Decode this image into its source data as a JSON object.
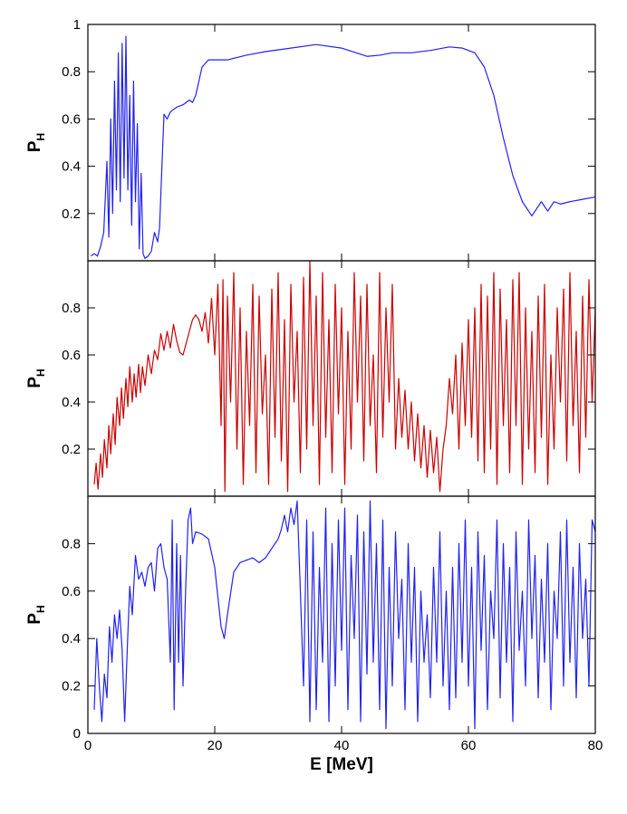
{
  "chart_data": [
    {
      "type": "line",
      "ylabel": "P",
      "ylabel_subscript": "H",
      "color": "#2222ee",
      "x": [
        0.5,
        1,
        1.5,
        2,
        2.5,
        3,
        3.3,
        3.6,
        3.9,
        4.2,
        4.5,
        4.8,
        5.1,
        5.4,
        5.7,
        6,
        6.3,
        6.6,
        6.9,
        7.2,
        7.5,
        7.8,
        8.1,
        8.4,
        8.7,
        9,
        9.5,
        10,
        10.5,
        11,
        11.3,
        11.6,
        12,
        12.5,
        13,
        14,
        15,
        16,
        16.5,
        17,
        17.5,
        18,
        19,
        20,
        22,
        25,
        28,
        32,
        36,
        40,
        44,
        46,
        48,
        51,
        54,
        57,
        59,
        61,
        62.5,
        64,
        65.5,
        67,
        68.5,
        70,
        71,
        71.5,
        72.5,
        73.5,
        74.5,
        76,
        78,
        80
      ],
      "values": [
        0.02,
        0.03,
        0.02,
        0.06,
        0.12,
        0.42,
        0.1,
        0.6,
        0.2,
        0.76,
        0.3,
        0.88,
        0.25,
        0.92,
        0.35,
        0.95,
        0.3,
        0.7,
        0.15,
        0.76,
        0.25,
        0.58,
        0.05,
        0.37,
        0.03,
        0.01,
        0.02,
        0.04,
        0.12,
        0.08,
        0.14,
        0.35,
        0.62,
        0.6,
        0.63,
        0.65,
        0.66,
        0.68,
        0.67,
        0.7,
        0.76,
        0.82,
        0.85,
        0.85,
        0.85,
        0.87,
        0.885,
        0.9,
        0.915,
        0.9,
        0.865,
        0.87,
        0.88,
        0.88,
        0.89,
        0.905,
        0.9,
        0.88,
        0.82,
        0.7,
        0.52,
        0.36,
        0.25,
        0.19,
        0.23,
        0.25,
        0.21,
        0.25,
        0.24,
        0.25,
        0.26,
        0.27
      ],
      "xlim": [
        0,
        80
      ],
      "xticks": [
        0,
        20,
        40,
        60,
        80
      ],
      "ylim": [
        0,
        1
      ],
      "yticks": [
        0.2,
        0.4,
        0.6,
        0.8,
        1
      ]
    },
    {
      "type": "line",
      "ylabel": "P",
      "ylabel_subscript": "H",
      "color": "#cc0000",
      "x": [
        1,
        1.3,
        1.6,
        2,
        2.3,
        2.6,
        3,
        3.3,
        3.6,
        4,
        4.3,
        4.6,
        5,
        5.3,
        5.6,
        6,
        6.3,
        6.6,
        7,
        7.3,
        7.6,
        8,
        8.3,
        8.6,
        9,
        9.5,
        10,
        10.5,
        11,
        11.5,
        12,
        12.5,
        13,
        13.5,
        14,
        14.5,
        15,
        15.5,
        16,
        16.5,
        17,
        17.5,
        18,
        18.5,
        19,
        19.5,
        20,
        20.5,
        21,
        21.3,
        21.6,
        22,
        22.5,
        23,
        23.5,
        24,
        24.5,
        25,
        25.5,
        26,
        26.5,
        27,
        27.5,
        28,
        28.5,
        29,
        29.5,
        30,
        30.5,
        31,
        31.5,
        32,
        32.5,
        33,
        33.5,
        34,
        34.5,
        35,
        35.5,
        36,
        36.5,
        37,
        37.5,
        38,
        38.5,
        39,
        39.5,
        40,
        40.5,
        41,
        41.5,
        42,
        42.5,
        43,
        43.5,
        44,
        44.5,
        45,
        45.5,
        46,
        46.5,
        47,
        47.5,
        48,
        48.5,
        49,
        49.5,
        50,
        50.5,
        51,
        51.5,
        52,
        52.5,
        53,
        53.5,
        54,
        54.5,
        55,
        55.5,
        56,
        56.5,
        57,
        57.5,
        58,
        58.5,
        59,
        59.5,
        60,
        60.5,
        61,
        61.5,
        62,
        62.5,
        63,
        63.5,
        64,
        64.5,
        65,
        65.5,
        66,
        66.5,
        67,
        67.5,
        68,
        68.5,
        69,
        69.5,
        70,
        70.5,
        71,
        71.5,
        72,
        72.5,
        73,
        73.5,
        74,
        74.5,
        75,
        75.5,
        76,
        76.5,
        77,
        77.5,
        78,
        78.5,
        79,
        79.5,
        80
      ],
      "values": [
        0.05,
        0.14,
        0.03,
        0.18,
        0.08,
        0.24,
        0.12,
        0.3,
        0.18,
        0.35,
        0.22,
        0.42,
        0.3,
        0.46,
        0.33,
        0.5,
        0.38,
        0.55,
        0.4,
        0.52,
        0.42,
        0.56,
        0.44,
        0.55,
        0.47,
        0.6,
        0.52,
        0.62,
        0.58,
        0.69,
        0.62,
        0.7,
        0.63,
        0.73,
        0.66,
        0.61,
        0.6,
        0.65,
        0.7,
        0.75,
        0.77,
        0.75,
        0.7,
        0.78,
        0.65,
        0.84,
        0.6,
        0.9,
        0.3,
        0.92,
        0.02,
        0.85,
        0.4,
        0.95,
        0.2,
        0.8,
        0.05,
        0.7,
        0.3,
        0.9,
        0.1,
        0.85,
        0.35,
        0.6,
        0.05,
        0.88,
        0.25,
        0.95,
        0.15,
        0.75,
        0.02,
        0.9,
        0.4,
        0.7,
        0.1,
        0.93,
        0.2,
        1.0,
        0.3,
        0.85,
        0.05,
        0.95,
        0.25,
        0.75,
        0.1,
        0.9,
        0.35,
        0.8,
        0.05,
        0.7,
        0.2,
        0.95,
        0.4,
        0.85,
        0.15,
        0.9,
        0.3,
        0.6,
        0.1,
        0.95,
        0.25,
        0.8,
        0.4,
        0.9,
        0.2,
        0.5,
        0.25,
        0.45,
        0.2,
        0.4,
        0.15,
        0.35,
        0.12,
        0.3,
        0.08,
        0.28,
        0.1,
        0.25,
        0.02,
        0.2,
        0.3,
        0.5,
        0.35,
        0.6,
        0.2,
        0.65,
        0.3,
        0.75,
        0.25,
        0.8,
        0.15,
        0.9,
        0.1,
        0.85,
        0.2,
        0.95,
        0.05,
        0.88,
        0.3,
        0.75,
        0.1,
        0.92,
        0.3,
        0.95,
        0.05,
        0.8,
        0.2,
        0.7,
        0.1,
        0.85,
        0.25,
        0.9,
        0.05,
        0.6,
        0.2,
        0.8,
        0.4,
        0.88,
        0.15,
        0.95,
        0.3,
        0.7,
        0.1,
        0.85,
        0.25,
        0.92,
        0.4,
        0.8
      ],
      "xlim": [
        0,
        80
      ],
      "xticks": [
        0,
        20,
        40,
        60,
        80
      ],
      "ylim": [
        0,
        1
      ],
      "yticks": [
        0.2,
        0.4,
        0.6,
        0.8
      ]
    },
    {
      "type": "line",
      "ylabel": "P",
      "ylabel_subscript": "H",
      "xlabel": "E [MeV]",
      "color": "#2222ee",
      "x": [
        1,
        1.4,
        1.8,
        2.2,
        2.6,
        3,
        3.4,
        3.8,
        4.2,
        4.6,
        5,
        5.4,
        5.8,
        6.2,
        6.6,
        7,
        7.5,
        8,
        8.5,
        9,
        9.5,
        10,
        10.5,
        11,
        11.5,
        12,
        12.5,
        13,
        13.3,
        13.6,
        14,
        14.3,
        14.6,
        15,
        15.4,
        15.8,
        16.2,
        16.5,
        17,
        18,
        19,
        20,
        21,
        21.5,
        22,
        23,
        24,
        25,
        26,
        27,
        28,
        29,
        30,
        30.5,
        31,
        31.5,
        32,
        32.5,
        33,
        33.5,
        34,
        34.5,
        35,
        35.5,
        36,
        36.5,
        37,
        37.5,
        38,
        38.5,
        39,
        39.5,
        40,
        40.5,
        41,
        41.5,
        42,
        42.5,
        43,
        43.5,
        44,
        44.5,
        45,
        45.5,
        46,
        46.5,
        47,
        47.5,
        48,
        48.5,
        49,
        49.5,
        50,
        50.5,
        51,
        51.5,
        52,
        52.5,
        53,
        53.5,
        54,
        54.5,
        55,
        55.5,
        56,
        56.5,
        57,
        57.5,
        58,
        58.5,
        59,
        59.5,
        60,
        60.5,
        61,
        61.5,
        62,
        62.5,
        63,
        63.5,
        64,
        64.5,
        65,
        65.5,
        66,
        66.5,
        67,
        67.5,
        68,
        68.5,
        69,
        69.5,
        70,
        70.5,
        71,
        71.5,
        72,
        72.5,
        73,
        73.5,
        74,
        74.5,
        75,
        75.5,
        76,
        76.5,
        77,
        77.5,
        78,
        78.5,
        79,
        79.5,
        80
      ],
      "values": [
        0.1,
        0.4,
        0.2,
        0.05,
        0.25,
        0.15,
        0.45,
        0.3,
        0.5,
        0.4,
        0.52,
        0.35,
        0.05,
        0.35,
        0.62,
        0.5,
        0.75,
        0.65,
        0.68,
        0.62,
        0.7,
        0.72,
        0.6,
        0.78,
        0.8,
        0.7,
        0.65,
        0.3,
        0.9,
        0.1,
        0.8,
        0.3,
        0.75,
        0.2,
        0.6,
        0.9,
        0.95,
        0.8,
        0.85,
        0.84,
        0.82,
        0.7,
        0.45,
        0.4,
        0.5,
        0.68,
        0.72,
        0.73,
        0.74,
        0.72,
        0.74,
        0.78,
        0.82,
        0.86,
        0.92,
        0.85,
        0.95,
        0.88,
        0.98,
        0.6,
        0.2,
        0.9,
        0.05,
        0.85,
        0.1,
        0.7,
        0.3,
        0.95,
        0.05,
        0.8,
        0.2,
        0.9,
        0.35,
        0.95,
        0.1,
        0.75,
        0.4,
        0.92,
        0.05,
        0.85,
        0.25,
        0.98,
        0.3,
        0.8,
        0.1,
        0.9,
        0.02,
        0.7,
        0.2,
        0.85,
        0.4,
        0.65,
        0.1,
        0.8,
        0.3,
        0.7,
        0.05,
        0.6,
        0.3,
        0.5,
        0.15,
        0.7,
        0.3,
        0.85,
        0.2,
        0.6,
        0.1,
        0.7,
        0.15,
        0.8,
        0.3,
        0.9,
        0.2,
        0.7,
        0.02,
        0.85,
        0.35,
        0.75,
        0.1,
        0.6,
        0.4,
        0.9,
        0.15,
        0.8,
        0.3,
        0.7,
        0.05,
        0.85,
        0.35,
        0.6,
        0.2,
        0.9,
        0.4,
        0.75,
        0.15,
        0.65,
        0.3,
        0.8,
        0.1,
        0.6,
        0.4,
        0.85,
        0.2,
        0.9,
        0.3,
        0.7,
        0.15,
        0.8,
        0.4,
        0.65,
        0.2,
        0.9,
        0.85
      ],
      "xlim": [
        0,
        80
      ],
      "xticks": [
        0,
        20,
        40,
        60,
        80
      ],
      "ylim": [
        0,
        1
      ],
      "yticks": [
        0,
        0.2,
        0.4,
        0.6,
        0.8
      ]
    }
  ]
}
